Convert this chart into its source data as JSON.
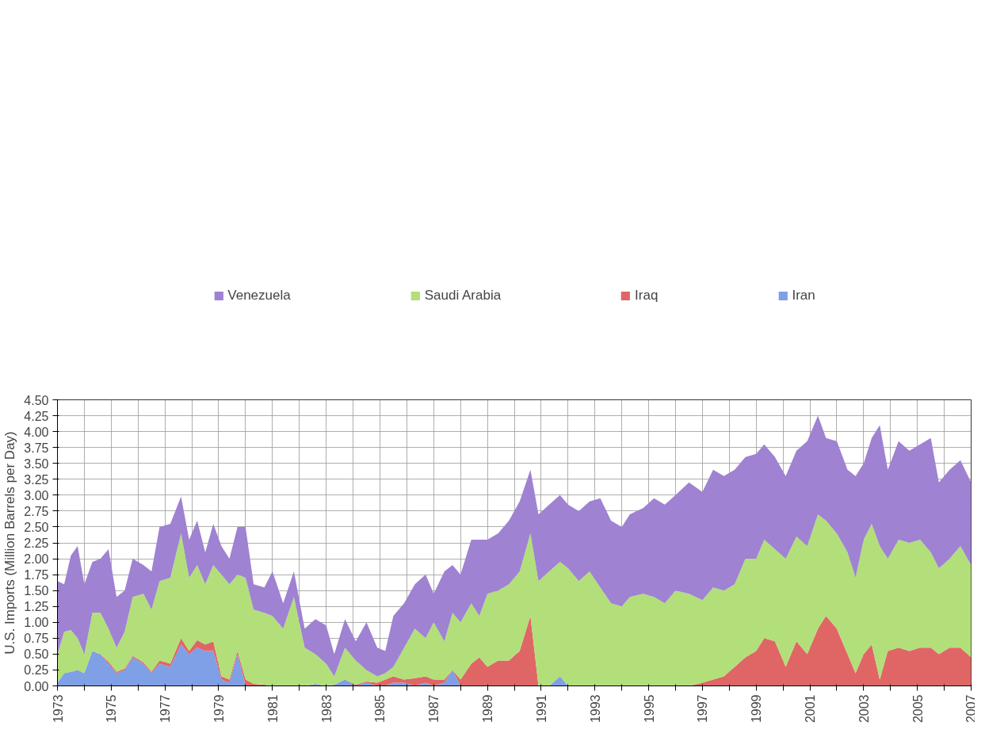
{
  "chart_data": {
    "type": "area",
    "stacked": true,
    "ylabel": "U.S. Imports (Million Barrels per Day)",
    "x": [
      1973.0,
      1973.25,
      1973.5,
      1973.75,
      1974.0,
      1974.3,
      1974.6,
      1974.9,
      1975.2,
      1975.5,
      1975.8,
      1976.2,
      1976.5,
      1976.8,
      1977.2,
      1977.6,
      1977.9,
      1978.2,
      1978.5,
      1978.8,
      1979.1,
      1979.4,
      1979.7,
      1980.0,
      1980.3,
      1980.7,
      1981.0,
      1981.4,
      1981.8,
      1982.2,
      1982.6,
      1983.0,
      1983.3,
      1983.7,
      1984.1,
      1984.5,
      1984.9,
      1985.2,
      1985.5,
      1985.9,
      1986.3,
      1986.7,
      1987.0,
      1987.4,
      1987.7,
      1988.0,
      1988.4,
      1988.7,
      1989.0,
      1989.4,
      1989.8,
      1990.2,
      1990.6,
      1990.9,
      1991.3,
      1991.7,
      1992.0,
      1992.4,
      1992.8,
      1993.2,
      1993.6,
      1994.0,
      1994.3,
      1994.8,
      1995.2,
      1995.6,
      1996.0,
      1996.5,
      1997.0,
      1997.4,
      1997.8,
      1998.2,
      1998.6,
      1999.0,
      1999.3,
      1999.7,
      2000.1,
      2000.5,
      2000.9,
      2001.3,
      2001.6,
      2002.0,
      2002.4,
      2002.7,
      2003.0,
      2003.3,
      2003.6,
      2003.9,
      2004.3,
      2004.7,
      2005.1,
      2005.5,
      2005.8,
      2006.2,
      2006.6,
      2007.0
    ],
    "series": [
      {
        "name": "Iran",
        "color": "#7f9fe6",
        "values": [
          0.05,
          0.2,
          0.22,
          0.25,
          0.2,
          0.55,
          0.5,
          0.35,
          0.2,
          0.25,
          0.45,
          0.35,
          0.2,
          0.35,
          0.3,
          0.65,
          0.5,
          0.6,
          0.55,
          0.55,
          0.1,
          0.05,
          0.5,
          0,
          0,
          0,
          0,
          0,
          0,
          0,
          0.03,
          0,
          0.02,
          0.1,
          0,
          0.05,
          0,
          0,
          0.05,
          0.05,
          0,
          0.05,
          0,
          0.05,
          0.25,
          0,
          0,
          0,
          0,
          0,
          0,
          0,
          0,
          0,
          0,
          0.15,
          0,
          0,
          0,
          0,
          0,
          0,
          0,
          0,
          0,
          0,
          0,
          0,
          0,
          0,
          0,
          0,
          0,
          0,
          0,
          0,
          0,
          0,
          0,
          0,
          0,
          0,
          0,
          0,
          0,
          0,
          0,
          0,
          0,
          0,
          0,
          0,
          0,
          0,
          0,
          0
        ]
      },
      {
        "name": "Iraq",
        "color": "#e06666",
        "values": [
          0,
          0,
          0,
          0,
          0,
          0,
          0,
          0.03,
          0.02,
          0.02,
          0.02,
          0.02,
          0.02,
          0.05,
          0.05,
          0.1,
          0.05,
          0.12,
          0.1,
          0.15,
          0.05,
          0.05,
          0.05,
          0.1,
          0.03,
          0.02,
          0,
          0,
          0,
          0,
          0,
          0,
          0,
          0,
          0.02,
          0.02,
          0.05,
          0.1,
          0.1,
          0.05,
          0.12,
          0.1,
          0.1,
          0.05,
          0,
          0.1,
          0.35,
          0.45,
          0.3,
          0.4,
          0.4,
          0.55,
          1.1,
          0,
          0,
          0,
          0,
          0,
          0,
          0,
          0,
          0,
          0,
          0,
          0,
          0,
          0,
          0,
          0.05,
          0.1,
          0.15,
          0.3,
          0.45,
          0.55,
          0.75,
          0.7,
          0.3,
          0.7,
          0.5,
          0.9,
          1.1,
          0.9,
          0.5,
          0.2,
          0.5,
          0.65,
          0.1,
          0.55,
          0.6,
          0.55,
          0.6,
          0.6,
          0.5,
          0.6,
          0.6,
          0.45
        ]
      },
      {
        "name": "Saudi Arabia",
        "color": "#b2df7a",
        "values": [
          0.45,
          0.65,
          0.66,
          0.5,
          0.3,
          0.6,
          0.65,
          0.52,
          0.38,
          0.58,
          0.93,
          1.08,
          0.98,
          1.25,
          1.35,
          1.65,
          1.15,
          1.18,
          0.95,
          1.2,
          1.6,
          1.5,
          1.2,
          1.6,
          1.17,
          1.13,
          1.1,
          0.9,
          1.4,
          0.6,
          0.47,
          0.35,
          0.13,
          0.5,
          0.38,
          0.18,
          0.1,
          0.1,
          0.15,
          0.5,
          0.78,
          0.6,
          0.9,
          0.6,
          0.9,
          0.9,
          0.95,
          0.65,
          1.15,
          1.1,
          1.2,
          1.25,
          1.3,
          1.65,
          1.8,
          1.8,
          1.85,
          1.65,
          1.8,
          1.55,
          1.3,
          1.25,
          1.4,
          1.45,
          1.4,
          1.3,
          1.5,
          1.45,
          1.3,
          1.45,
          1.35,
          1.3,
          1.55,
          1.45,
          1.55,
          1.45,
          1.7,
          1.65,
          1.7,
          1.8,
          1.5,
          1.5,
          1.6,
          1.5,
          1.8,
          1.9,
          2.1,
          1.45,
          1.7,
          1.7,
          1.7,
          1.5,
          1.35,
          1.4,
          1.6,
          1.45
        ]
      },
      {
        "name": "Venezuela",
        "color": "#9f82d2",
        "values": [
          1.15,
          0.75,
          1.17,
          1.45,
          1.1,
          0.8,
          0.85,
          1.25,
          0.8,
          0.65,
          0.6,
          0.45,
          0.6,
          0.85,
          0.85,
          0.58,
          0.6,
          0.7,
          0.5,
          0.65,
          0.45,
          0.4,
          0.75,
          0.8,
          0.4,
          0.4,
          0.7,
          0.4,
          0.4,
          0.3,
          0.55,
          0.6,
          0.35,
          0.45,
          0.3,
          0.75,
          0.45,
          0.35,
          0.8,
          0.7,
          0.7,
          1.0,
          0.45,
          1.1,
          0.75,
          0.75,
          1.0,
          1.2,
          0.85,
          0.9,
          1.0,
          1.1,
          1.0,
          1.05,
          1.05,
          1.05,
          1.0,
          1.1,
          1.1,
          1.4,
          1.3,
          1.25,
          1.3,
          1.35,
          1.55,
          1.55,
          1.5,
          1.75,
          1.7,
          1.85,
          1.8,
          1.8,
          1.6,
          1.65,
          1.5,
          1.45,
          1.3,
          1.35,
          1.65,
          1.55,
          1.3,
          1.45,
          1.3,
          1.6,
          1.2,
          1.35,
          1.9,
          1.4,
          1.55,
          1.45,
          1.5,
          1.8,
          1.35,
          1.4,
          1.35,
          1.3
        ]
      }
    ],
    "xlim": [
      1973,
      2007
    ],
    "ylim": [
      0,
      4.5
    ],
    "xticks": [
      1973,
      {
        "value": 1974,
        "label": null
      },
      1975,
      {
        "value": 1976,
        "label": null
      },
      1977,
      {
        "value": 1978,
        "label": null
      },
      1979,
      {
        "value": 1980,
        "label": null
      },
      1981,
      {
        "value": 1982,
        "label": null
      },
      1983,
      {
        "value": 1984,
        "label": null
      },
      1985,
      {
        "value": 1986,
        "label": null
      },
      1987,
      {
        "value": 1988,
        "label": null
      },
      1989,
      {
        "value": 1990,
        "label": null
      },
      1991,
      {
        "value": 1992,
        "label": null
      },
      1993,
      {
        "value": 1994,
        "label": null
      },
      1995,
      {
        "value": 1996,
        "label": null
      },
      1997,
      {
        "value": 1998,
        "label": null
      },
      1999,
      {
        "value": 2000,
        "label": null
      },
      2001,
      {
        "value": 2002,
        "label": null
      },
      2003,
      {
        "value": 2004,
        "label": null
      },
      2005,
      {
        "value": 2006,
        "label": null
      },
      2007
    ],
    "yticks": [
      {
        "value": 0,
        "label": "0.00"
      },
      {
        "value": 0.25,
        "label": "0.25"
      },
      {
        "value": 0.5,
        "label": "0.50"
      },
      {
        "value": 0.75,
        "label": "0.75"
      },
      {
        "value": 1,
        "label": "1.00"
      },
      {
        "value": 1.25,
        "label": "1.25"
      },
      {
        "value": 1.5,
        "label": "1.50"
      },
      {
        "value": 1.75,
        "label": "1.75"
      },
      {
        "value": 2,
        "label": "2.00"
      },
      {
        "value": 2.25,
        "label": "2.25"
      },
      {
        "value": 2.5,
        "label": "2.50"
      },
      {
        "value": 2.75,
        "label": "2.75"
      },
      {
        "value": 3,
        "label": "3.00"
      },
      {
        "value": 3.25,
        "label": "3.25"
      },
      {
        "value": 3.5,
        "label": "3.50"
      },
      {
        "value": 3.75,
        "label": "3.75"
      },
      {
        "value": 4,
        "label": "4.00"
      },
      {
        "value": 4.25,
        "label": "4.25"
      },
      {
        "value": 4.5,
        "label": "4.50"
      }
    ],
    "grid": true,
    "legend": "top"
  }
}
